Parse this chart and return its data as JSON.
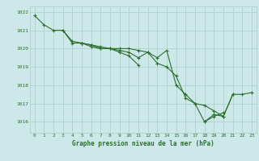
{
  "title": "Graphe pression niveau de la mer (hPa)",
  "background_color": "#cce8e8",
  "grid_color": "#aacccc",
  "line_color": "#2d6e2d",
  "xlim": [
    -0.5,
    23.5
  ],
  "ylim": [
    1015.4,
    1022.3
  ],
  "yticks": [
    1016,
    1017,
    1018,
    1019,
    1020,
    1021,
    1022
  ],
  "xticks": [
    0,
    1,
    2,
    3,
    4,
    5,
    6,
    7,
    8,
    9,
    10,
    11,
    12,
    13,
    14,
    15,
    16,
    17,
    18,
    19,
    20,
    21,
    22,
    23
  ],
  "line1": {
    "x": [
      0,
      1,
      2,
      3,
      4,
      5,
      6,
      7,
      8,
      9,
      10,
      11,
      12,
      13,
      14,
      15,
      16,
      17,
      18,
      19,
      20,
      21
    ],
    "y": [
      1021.8,
      1021.3,
      1021.0,
      1021.0,
      1020.3,
      1020.3,
      1020.1,
      1020.0,
      1020.0,
      1019.9,
      1019.8,
      1019.5,
      1019.8,
      1019.2,
      1019.0,
      1018.5,
      1017.3,
      1017.0,
      1016.0,
      1016.4,
      1016.3,
      1017.5
    ]
  },
  "line2": {
    "x": [
      3,
      4,
      5,
      6,
      7,
      8,
      9,
      10,
      11
    ],
    "y": [
      1021.0,
      1020.4,
      1020.3,
      1020.2,
      1020.1,
      1020.0,
      1019.8,
      1019.6,
      1019.1
    ]
  },
  "line3": {
    "x": [
      5,
      6,
      7,
      8,
      9,
      10,
      11,
      12,
      13,
      14,
      15,
      16,
      17,
      18,
      19,
      20,
      21,
      22,
      23
    ],
    "y": [
      1020.3,
      1020.2,
      1020.0,
      1020.0,
      1020.0,
      1020.0,
      1019.9,
      1019.8,
      1019.5,
      1019.9,
      1018.0,
      1017.5,
      1017.0,
      1016.9,
      1016.6,
      1016.3,
      1017.5,
      1017.5,
      1017.6
    ]
  },
  "line4": {
    "x": [
      18,
      19,
      20
    ],
    "y": [
      1016.0,
      1016.3,
      1016.5
    ]
  }
}
